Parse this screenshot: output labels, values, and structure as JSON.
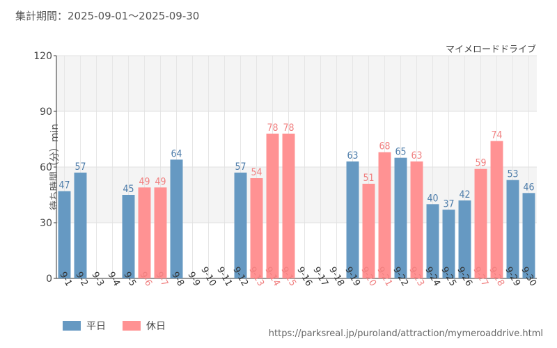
{
  "header": {
    "range_label": "集計期間：2025-09-01〜2025-09-30"
  },
  "attraction_name": "マイメロードドライブ",
  "source_url": "https://parksreal.jp/puroland/attraction/mymeroaddrive.html",
  "legend": {
    "weekday": "平日",
    "holiday": "休日"
  },
  "colors": {
    "weekday": "#6699c2",
    "holiday": "#ff9293",
    "weekday_label": "#4a7aa8",
    "holiday_label": "#f07f7f"
  },
  "chart_data": {
    "type": "bar",
    "ylabel": "待ち時間（分）min",
    "xlabel": "",
    "ylim": [
      0,
      120
    ],
    "yticks": [
      0,
      30,
      60,
      90,
      120
    ],
    "categories": [
      "9-1",
      "9-2",
      "9-3",
      "9-4",
      "9-5",
      "9-6",
      "9-7",
      "9-8",
      "9-9",
      "9-10",
      "9-11",
      "9-12",
      "9-13",
      "9-14",
      "9-15",
      "9-16",
      "9-17",
      "9-18",
      "9-19",
      "9-20",
      "9-21",
      "9-22",
      "9-23",
      "9-24",
      "9-25",
      "9-26",
      "9-27",
      "9-28",
      "9-29",
      "9-30"
    ],
    "values": [
      47,
      57,
      null,
      null,
      45,
      49,
      49,
      64,
      null,
      null,
      null,
      57,
      54,
      78,
      78,
      null,
      null,
      null,
      63,
      51,
      68,
      65,
      63,
      40,
      37,
      42,
      59,
      74,
      53,
      46
    ],
    "day_type": [
      "weekday",
      "weekday",
      "weekday",
      "weekday",
      "weekday",
      "holiday",
      "holiday",
      "weekday",
      "weekday",
      "weekday",
      "weekday",
      "weekday",
      "holiday",
      "holiday",
      "holiday",
      "weekday",
      "weekday",
      "weekday",
      "weekday",
      "holiday",
      "holiday",
      "weekday",
      "holiday",
      "weekday",
      "weekday",
      "weekday",
      "holiday",
      "holiday",
      "weekday",
      "weekday"
    ]
  }
}
